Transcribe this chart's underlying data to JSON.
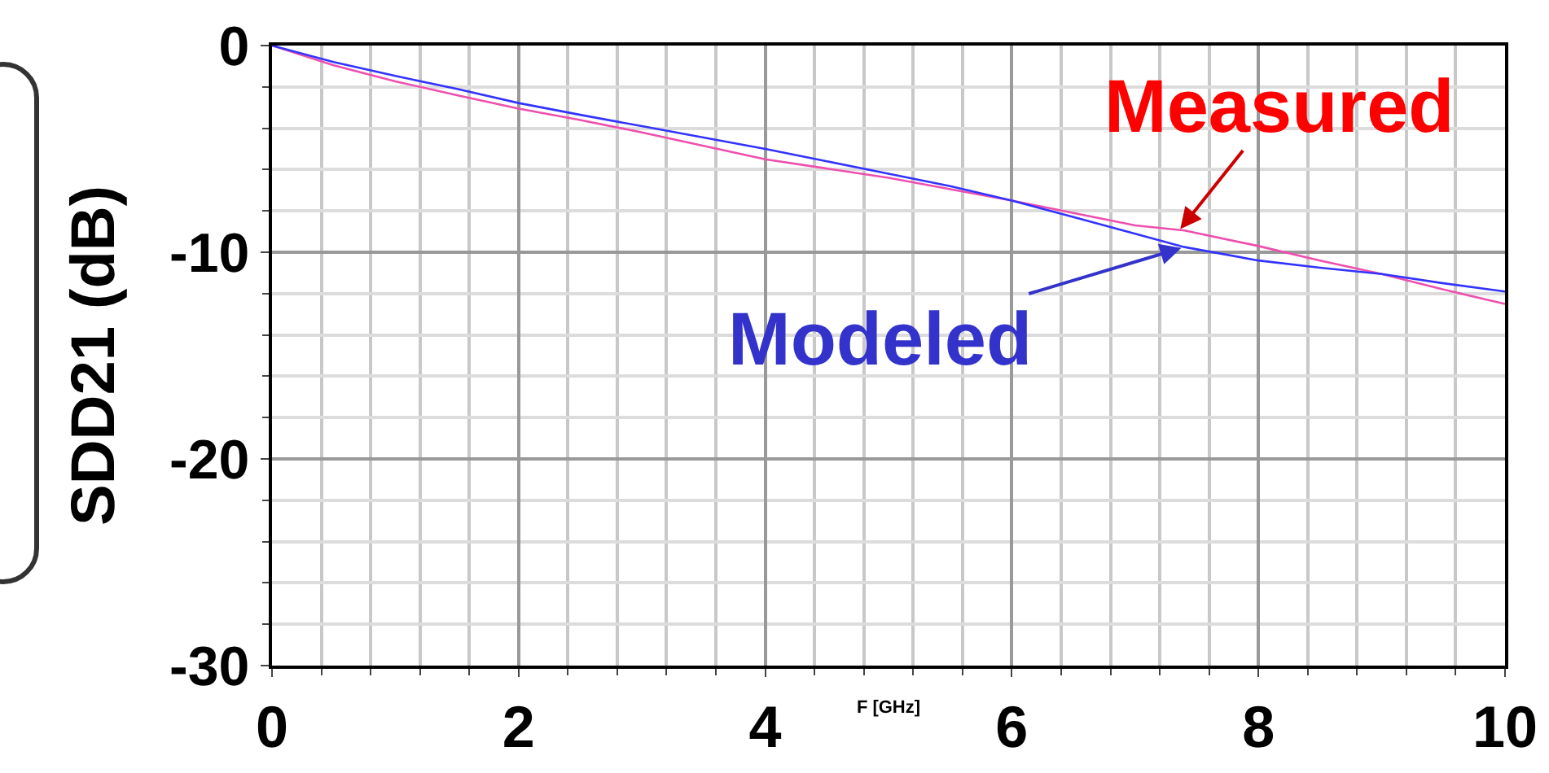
{
  "chart_data": {
    "type": "line",
    "xlabel": "F [GHz]",
    "ylabel": "SDD21 (dB)",
    "xlim": [
      0,
      10
    ],
    "xticks": [
      0,
      2,
      4,
      6,
      8,
      10
    ],
    "ylim": [
      -30,
      0
    ],
    "yticks": [
      0,
      -10,
      -20,
      -30
    ],
    "grid": true,
    "marker": "none",
    "line_style": "solid",
    "series": [
      {
        "color": "#ee4fae",
        "x": [
          0,
          0.5,
          1,
          1.5,
          2,
          2.5,
          3,
          3.5,
          4,
          4.5,
          5,
          5.5,
          6,
          6.5,
          7,
          7.4,
          8,
          8.5,
          9,
          9.5,
          10
        ],
        "values": [
          0,
          -0.95,
          -1.73,
          -2.4,
          -3.05,
          -3.6,
          -4.2,
          -4.85,
          -5.5,
          -5.95,
          -6.4,
          -6.95,
          -7.5,
          -8.1,
          -8.7,
          -8.95,
          -9.7,
          -10.4,
          -11.05,
          -11.8,
          -12.5
        ]
      },
      {
        "color": "#3333ff",
        "x": [
          0,
          0.5,
          1,
          1.5,
          2,
          2.5,
          3,
          3.5,
          4,
          4.5,
          5,
          5.5,
          6,
          6.5,
          7,
          7.4,
          8,
          8.5,
          9,
          9.5,
          10
        ],
        "values": [
          0,
          -0.8,
          -1.47,
          -2.1,
          -2.78,
          -3.35,
          -3.9,
          -4.45,
          -5.0,
          -5.6,
          -6.2,
          -6.8,
          -7.5,
          -8.3,
          -9.1,
          -9.75,
          -10.4,
          -10.75,
          -11.05,
          -11.5,
          -11.9
        ]
      }
    ],
    "annotations": [
      {
        "text": "Measured",
        "x": 7.35,
        "y": -9.0
      },
      {
        "text": "Modeled",
        "x": 7.4,
        "y": -9.75
      }
    ]
  }
}
